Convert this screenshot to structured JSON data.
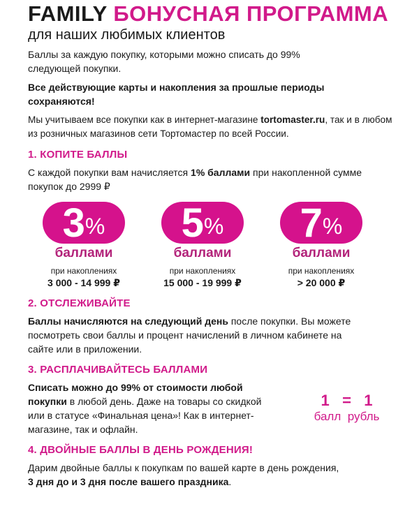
{
  "header": {
    "brand": "FAMILY",
    "title": "БОНУСНАЯ ПРОГРАММА",
    "subtitle": "для наших любимых клиентов"
  },
  "intro": {
    "p1": "Баллы за каждую покупку, которыми можно списать до 99% следующей покупки.",
    "p2": "Все действующие карты и накопления за прошлые периоды сохраняются!",
    "p3_before": "Мы учитываем все покупки как в интернет-магазине ",
    "p3_site": "tortomaster.ru",
    "p3_after": ", так и в любом из розничных магазинов сети Тортомастер по всей России."
  },
  "section1": {
    "heading": "1. КОПИТЕ БАЛЛЫ",
    "text_before": "С каждой покупки вам начисляется ",
    "text_bold": "1% баллами",
    "text_after": " при накопленной сумме покупок до 2999 ₽",
    "tiers": [
      {
        "value": "3",
        "unit": "%",
        "label": "баллами",
        "caption": "при накоплениях",
        "range": "3 000 - 14 999 ₽"
      },
      {
        "value": "5",
        "unit": "%",
        "label": "баллами",
        "caption": "при накоплениях",
        "range": "15 000 - 19 999 ₽"
      },
      {
        "value": "7",
        "unit": "%",
        "label": "баллами",
        "caption": "при накоплениях",
        "range": "> 20 000 ₽"
      }
    ]
  },
  "section2": {
    "heading": "2. ОТСЛЕЖИВАЙТЕ",
    "text_bold": "Баллы начисляются на следующий день",
    "text_after": " после покупки. Вы можете посмотреть свои баллы и процент начислений в личном кабинете на сайте или в приложении."
  },
  "section3": {
    "heading": "3. РАСПЛАЧИВАЙТЕСЬ БАЛЛАМИ",
    "text_bold": "Списать можно до 99% от стоимости любой покупки",
    "text_after": " в любой день. Даже на товары со скидкой или в статусе «Финальная цена»! Как в интернет-магазине, так и офлайн.",
    "equation": {
      "left_num": "1",
      "eq": "=",
      "right_num": "1",
      "left_label": "балл",
      "right_label": "рубль"
    }
  },
  "section4": {
    "heading": "4. ДВОЙНЫЕ БАЛЛЫ В ДЕНЬ РОЖДЕНИЯ!",
    "text": "Дарим двойные баллы к покупкам по вашей карте в день рождения,",
    "text_bold": "3 дня до и 3 дня после вашего праздника",
    "text_end": "."
  },
  "colors": {
    "accent": "#d5128c",
    "label": "#b3237a"
  }
}
